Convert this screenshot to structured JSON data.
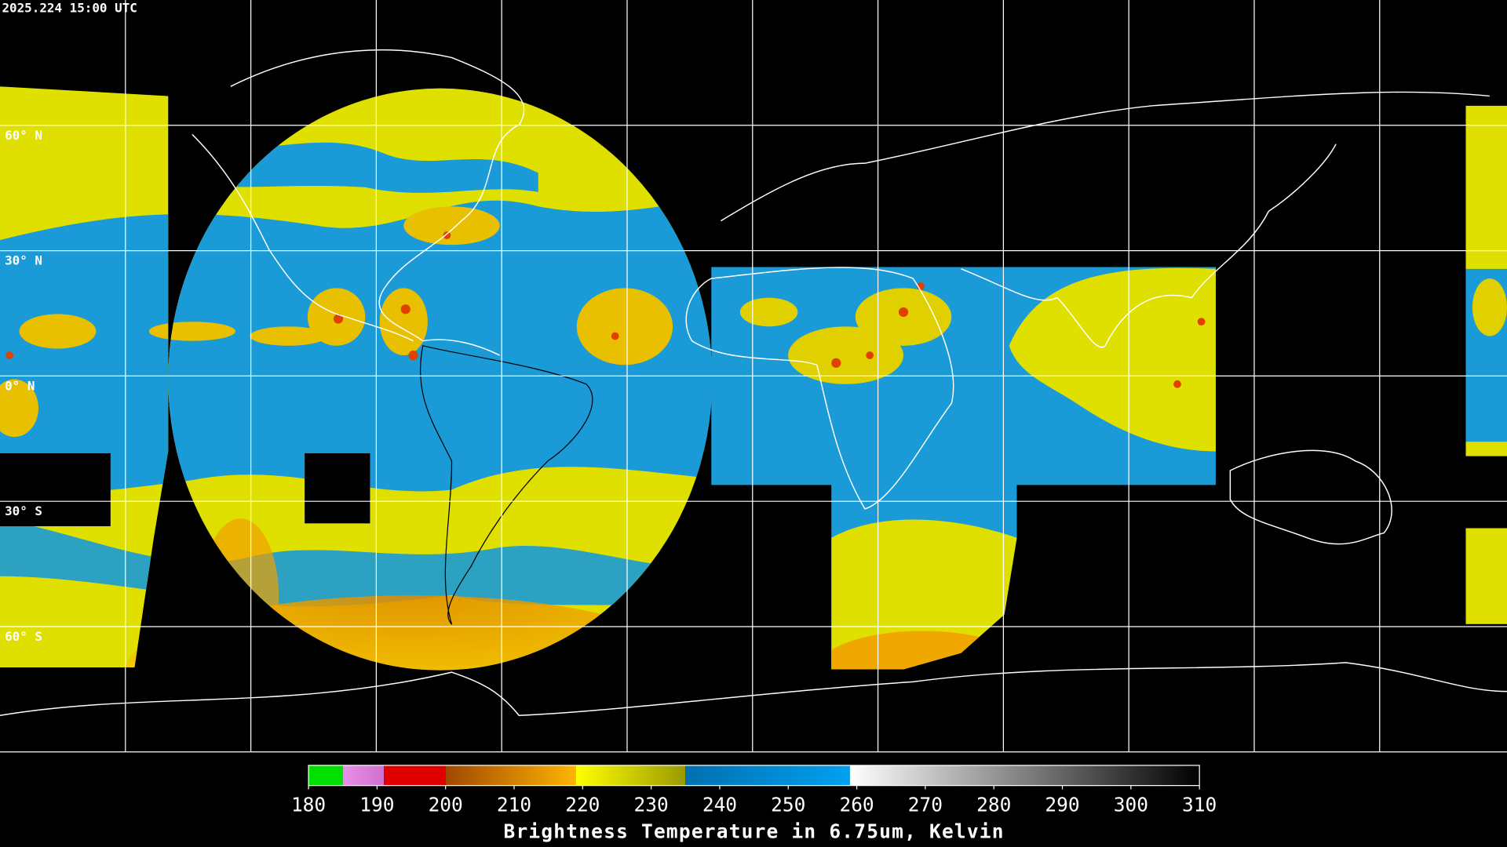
{
  "timestamp": "2025.224 15:00 UTC",
  "lat_labels": [
    "60° N",
    "30° N",
    "0° N",
    "30° S",
    "60° S"
  ],
  "colorbar": {
    "title": "Brightness Temperature in 6.75um, Kelvin",
    "range": [
      180,
      310
    ],
    "ticks": [
      180,
      190,
      200,
      210,
      220,
      230,
      240,
      250,
      260,
      270,
      280,
      290,
      300,
      310
    ],
    "segments": [
      {
        "from": 180,
        "to": 185,
        "color_start": "#00e000",
        "color_end": "#00e000"
      },
      {
        "from": 185,
        "to": 191,
        "color_start": "#e890e8",
        "color_end": "#d070d0"
      },
      {
        "from": 191,
        "to": 200,
        "color_start": "#e00000",
        "color_end": "#e00000"
      },
      {
        "from": 200,
        "to": 219,
        "color_start": "#a04800",
        "color_end": "#ffb400"
      },
      {
        "from": 219,
        "to": 235,
        "color_start": "#ffff00",
        "color_end": "#9a9a00"
      },
      {
        "from": 235,
        "to": 259,
        "color_start": "#0070b0",
        "color_end": "#00a0f0"
      },
      {
        "from": 259,
        "to": 310,
        "color_start": "#ffffff",
        "color_end": "#000000"
      }
    ]
  }
}
